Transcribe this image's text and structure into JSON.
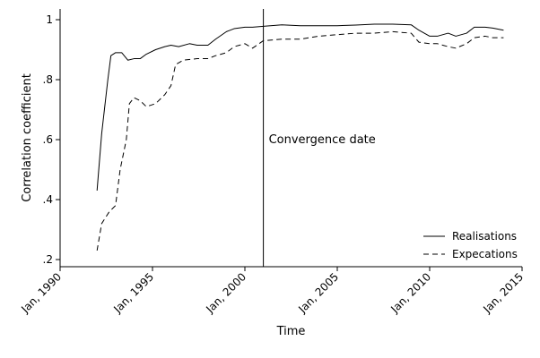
{
  "chart_data": {
    "type": "line",
    "xlabel": "Time",
    "ylabel": "Correlation coefficient",
    "xlim": [
      "1990-01",
      "2015-01"
    ],
    "ylim": [
      0.2,
      1.0
    ],
    "x_ticks": [
      {
        "value": "1990-01",
        "label": "Jan, 1990"
      },
      {
        "value": "1995-01",
        "label": "Jan, 1995"
      },
      {
        "value": "2000-01",
        "label": "Jan, 2000"
      },
      {
        "value": "2005-01",
        "label": "Jan, 2005"
      },
      {
        "value": "2010-01",
        "label": "Jan, 2010"
      },
      {
        "value": "2015-01",
        "label": "Jan, 2015"
      }
    ],
    "y_ticks": [
      {
        "value": 0.2,
        "label": ".2"
      },
      {
        "value": 0.4,
        "label": ".4"
      },
      {
        "value": 0.6,
        "label": ".6"
      },
      {
        "value": 0.8,
        "label": ".8"
      },
      {
        "value": 1.0,
        "label": "1"
      }
    ],
    "grid": false,
    "legend_position": "bottom-right",
    "annotations": [
      {
        "type": "vline",
        "x": "2001-01",
        "text": "Convergence date"
      }
    ],
    "series": [
      {
        "name": "Realisations",
        "style": "solid",
        "color": "#000000",
        "points": [
          [
            "1992-01",
            0.43
          ],
          [
            "1992-04",
            0.62
          ],
          [
            "1992-08",
            0.8
          ],
          [
            "1992-10",
            0.88
          ],
          [
            "1993-01",
            0.89
          ],
          [
            "1993-05",
            0.89
          ],
          [
            "1993-09",
            0.865
          ],
          [
            "1994-01",
            0.87
          ],
          [
            "1994-05",
            0.87
          ],
          [
            "1994-09",
            0.885
          ],
          [
            "1995-03",
            0.9
          ],
          [
            "1995-09",
            0.91
          ],
          [
            "1996-01",
            0.915
          ],
          [
            "1996-06",
            0.91
          ],
          [
            "1997-01",
            0.92
          ],
          [
            "1997-06",
            0.915
          ],
          [
            "1998-01",
            0.915
          ],
          [
            "1998-06",
            0.935
          ],
          [
            "1999-01",
            0.96
          ],
          [
            "1999-06",
            0.97
          ],
          [
            "2000-01",
            0.975
          ],
          [
            "2000-06",
            0.975
          ],
          [
            "2001-01",
            0.978
          ],
          [
            "2002-01",
            0.983
          ],
          [
            "2003-01",
            0.98
          ],
          [
            "2004-01",
            0.98
          ],
          [
            "2005-01",
            0.98
          ],
          [
            "2006-01",
            0.982
          ],
          [
            "2007-01",
            0.985
          ],
          [
            "2008-01",
            0.985
          ],
          [
            "2009-01",
            0.983
          ],
          [
            "2009-06",
            0.965
          ],
          [
            "2010-01",
            0.945
          ],
          [
            "2010-06",
            0.945
          ],
          [
            "2011-01",
            0.955
          ],
          [
            "2011-06",
            0.945
          ],
          [
            "2012-01",
            0.955
          ],
          [
            "2012-06",
            0.975
          ],
          [
            "2013-01",
            0.975
          ],
          [
            "2013-06",
            0.972
          ],
          [
            "2014-01",
            0.965
          ]
        ]
      },
      {
        "name": "Expecations",
        "style": "dashed",
        "color": "#000000",
        "points": [
          [
            "1992-01",
            0.23
          ],
          [
            "1992-04",
            0.32
          ],
          [
            "1992-09",
            0.36
          ],
          [
            "1993-01",
            0.38
          ],
          [
            "1993-04",
            0.5
          ],
          [
            "1993-08",
            0.6
          ],
          [
            "1993-10",
            0.72
          ],
          [
            "1994-01",
            0.74
          ],
          [
            "1994-05",
            0.73
          ],
          [
            "1994-09",
            0.71
          ],
          [
            "1995-03",
            0.72
          ],
          [
            "1995-09",
            0.75
          ],
          [
            "1996-01",
            0.78
          ],
          [
            "1996-04",
            0.85
          ],
          [
            "1996-09",
            0.865
          ],
          [
            "1997-06",
            0.87
          ],
          [
            "1998-01",
            0.87
          ],
          [
            "1998-06",
            0.88
          ],
          [
            "1999-01",
            0.89
          ],
          [
            "1999-06",
            0.91
          ],
          [
            "2000-01",
            0.92
          ],
          [
            "2000-06",
            0.905
          ],
          [
            "2001-01",
            0.93
          ],
          [
            "2002-01",
            0.935
          ],
          [
            "2003-01",
            0.935
          ],
          [
            "2004-01",
            0.945
          ],
          [
            "2005-01",
            0.95
          ],
          [
            "2006-01",
            0.955
          ],
          [
            "2007-01",
            0.955
          ],
          [
            "2008-01",
            0.96
          ],
          [
            "2009-01",
            0.955
          ],
          [
            "2009-06",
            0.925
          ],
          [
            "2010-01",
            0.92
          ],
          [
            "2010-06",
            0.92
          ],
          [
            "2011-01",
            0.91
          ],
          [
            "2011-06",
            0.905
          ],
          [
            "2012-01",
            0.92
          ],
          [
            "2012-06",
            0.94
          ],
          [
            "2013-01",
            0.945
          ],
          [
            "2013-06",
            0.94
          ],
          [
            "2014-01",
            0.94
          ]
        ]
      }
    ]
  }
}
